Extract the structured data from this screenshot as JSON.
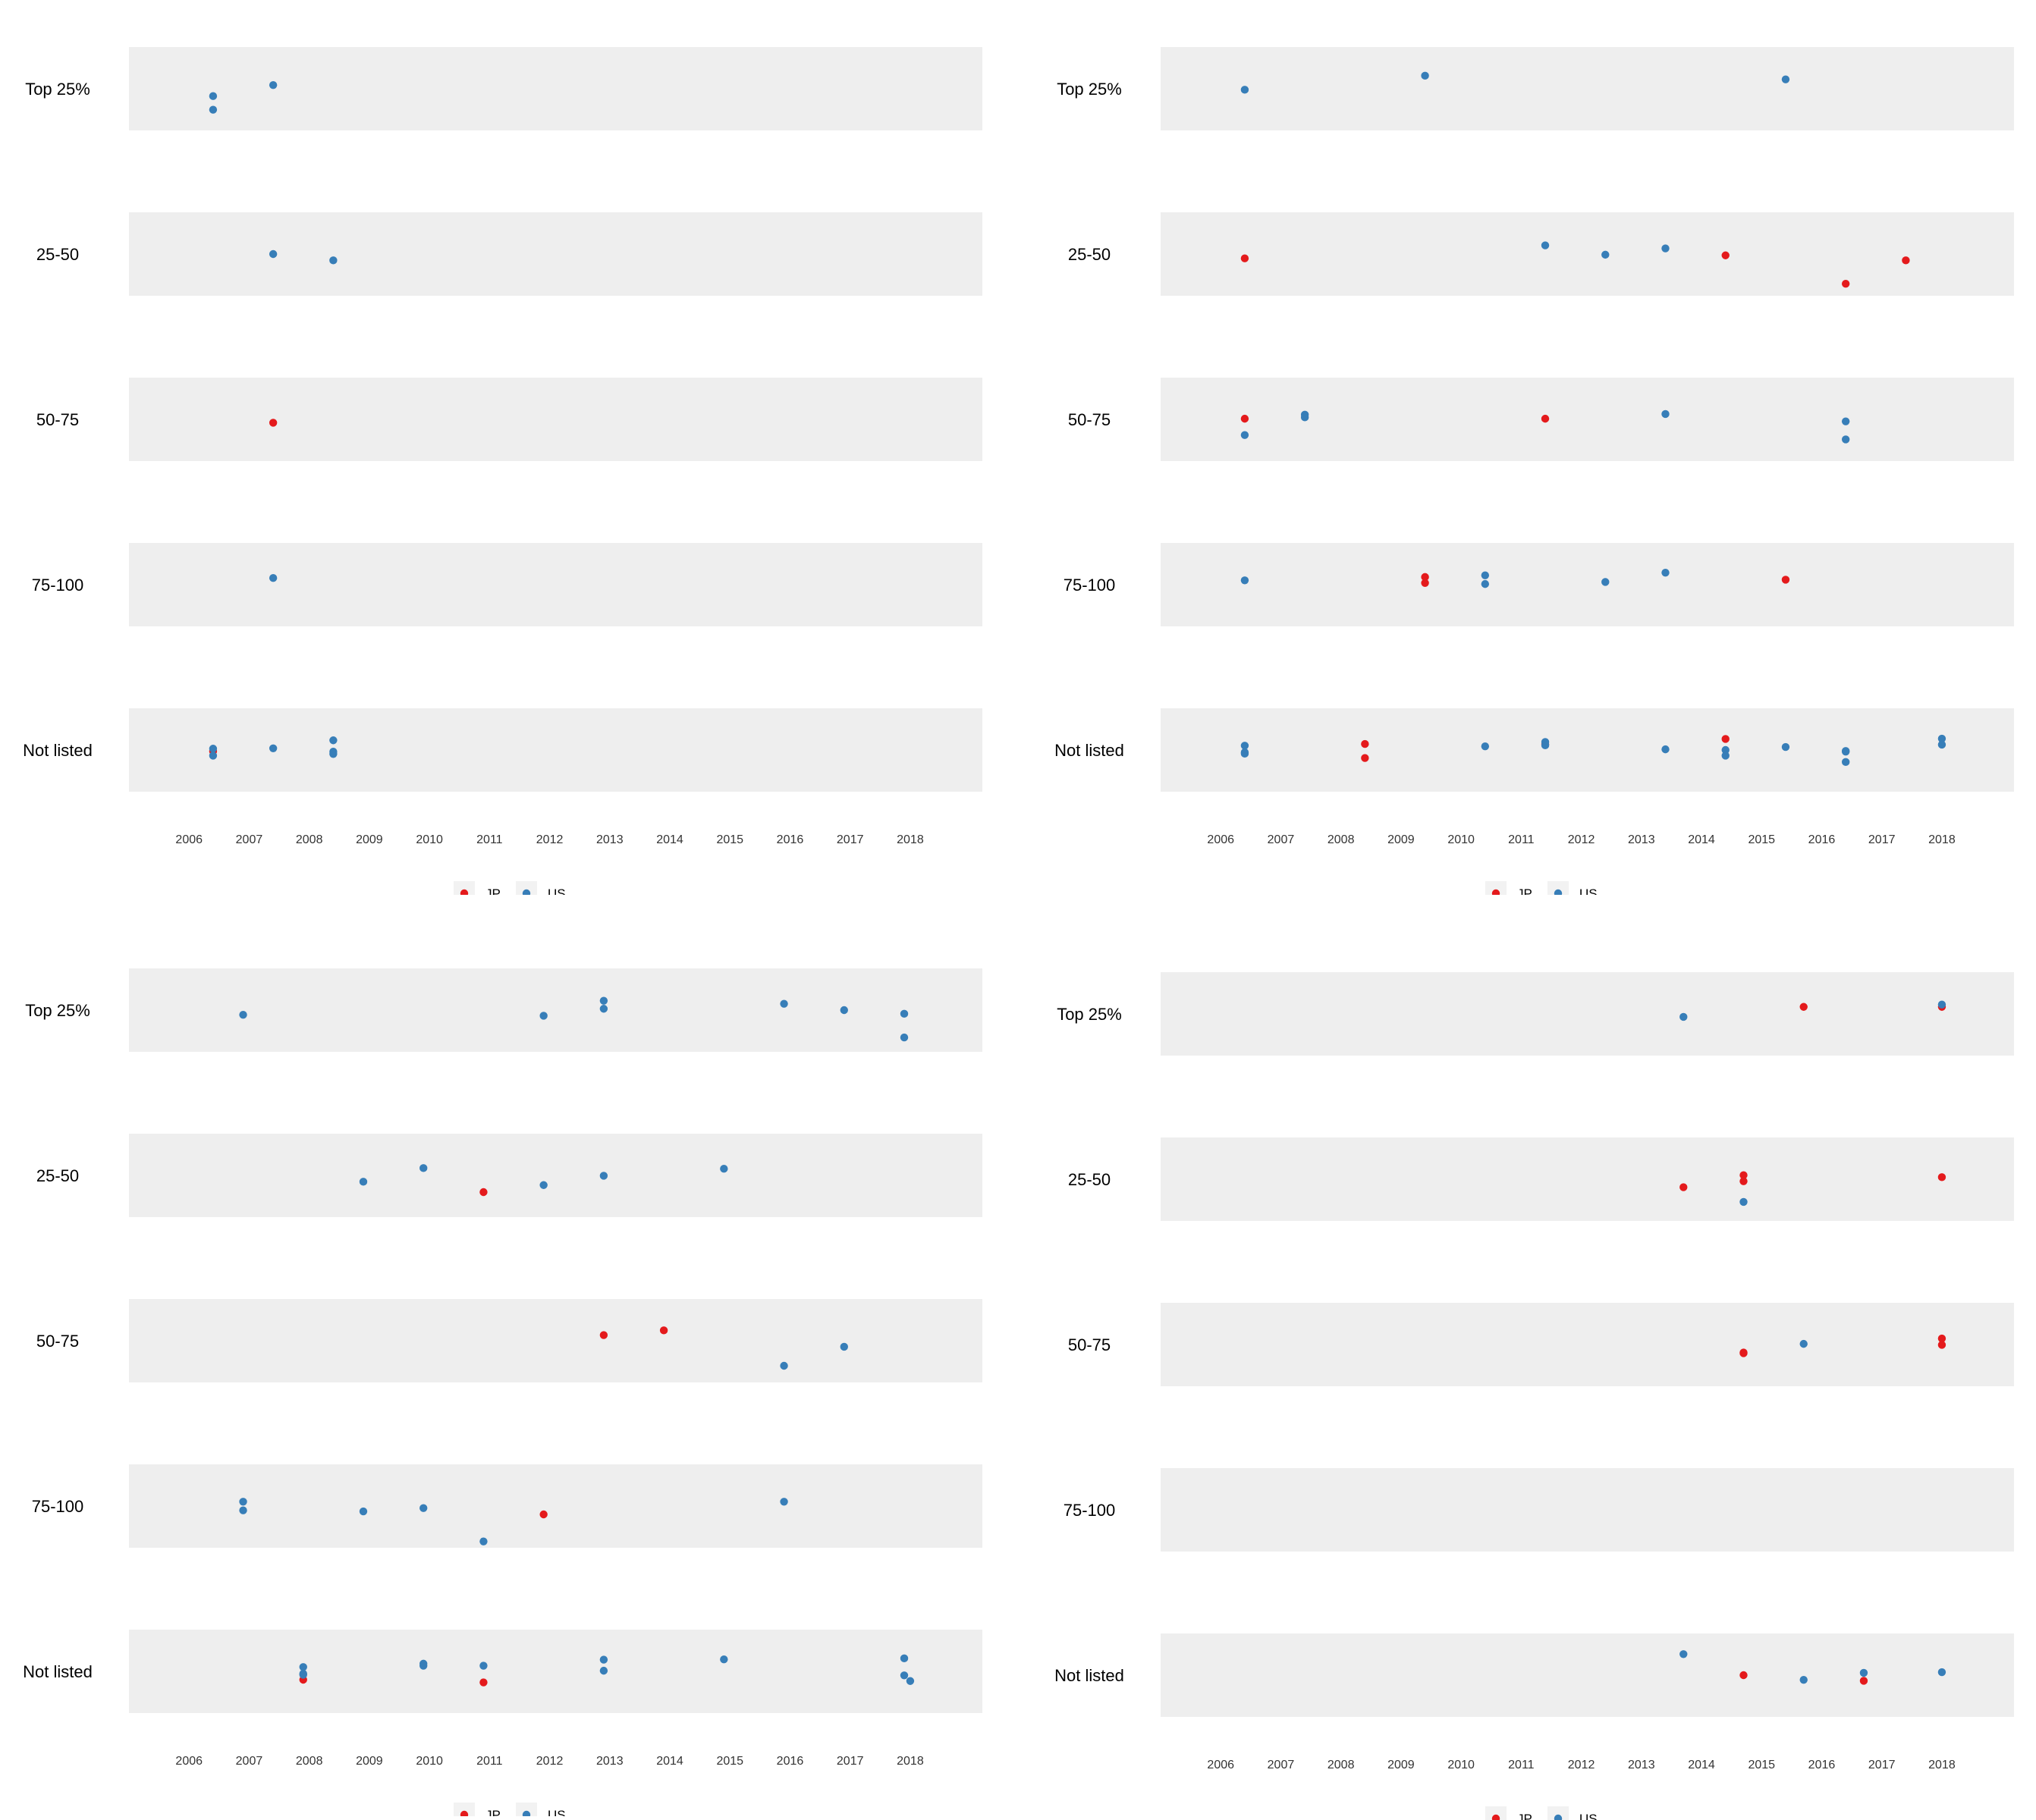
{
  "chart_data": [
    {
      "type": "scatter",
      "categories": [
        "Top 25%",
        "25-50",
        "50-75",
        "75-100",
        "Not listed"
      ],
      "x_ticks": [
        "2006",
        "2007",
        "2008",
        "2009",
        "2010",
        "2011",
        "2012",
        "2013",
        "2014",
        "2015",
        "2016",
        "2017",
        "2018"
      ],
      "xlim": [
        2005.0,
        2019.2
      ],
      "legend": [
        "JP",
        "US"
      ],
      "legend_position": "bottom",
      "series": [
        {
          "name": "JP",
          "color": "#E41A1C",
          "points": [
            {
              "x": 2007.4,
              "cat": "50-75",
              "jitter": -0.1
            },
            {
              "x": 2006.4,
              "cat": "Not listed",
              "jitter": -0.04
            }
          ]
        },
        {
          "name": "US",
          "color": "#377EB8",
          "points": [
            {
              "x": 2007.4,
              "cat": "Top 25%",
              "jitter": 0.11
            },
            {
              "x": 2006.4,
              "cat": "Top 25%",
              "jitter": -0.22
            },
            {
              "x": 2006.4,
              "cat": "Top 25%",
              "jitter": -0.63
            },
            {
              "x": 2007.4,
              "cat": "25-50",
              "jitter": 0.0
            },
            {
              "x": 2008.4,
              "cat": "25-50",
              "jitter": -0.19
            },
            {
              "x": 2007.4,
              "cat": "75-100",
              "jitter": 0.2
            },
            {
              "x": 2006.4,
              "cat": "Not listed",
              "jitter": 0.04
            },
            {
              "x": 2006.4,
              "cat": "Not listed",
              "jitter": -0.17
            },
            {
              "x": 2007.4,
              "cat": "Not listed",
              "jitter": 0.05
            },
            {
              "x": 2008.4,
              "cat": "Not listed",
              "jitter": 0.29
            },
            {
              "x": 2008.4,
              "cat": "Not listed",
              "jitter": -0.05
            },
            {
              "x": 2008.4,
              "cat": "Not listed",
              "jitter": -0.12
            }
          ]
        }
      ]
    },
    {
      "type": "scatter",
      "categories": [
        "Top 25%",
        "25-50",
        "50-75",
        "75-100",
        "Not listed"
      ],
      "x_ticks": [
        "2006",
        "2007",
        "2008",
        "2009",
        "2010",
        "2011",
        "2012",
        "2013",
        "2014",
        "2015",
        "2016",
        "2017",
        "2018"
      ],
      "xlim": [
        2005.0,
        2019.2
      ],
      "legend": [
        "JP",
        "US"
      ],
      "legend_position": "bottom",
      "series": [
        {
          "name": "JP",
          "color": "#E41A1C",
          "points": [
            {
              "x": 2006.4,
              "cat": "25-50",
              "jitter": -0.13
            },
            {
              "x": 2014.4,
              "cat": "25-50",
              "jitter": -0.04
            },
            {
              "x": 2017.4,
              "cat": "25-50",
              "jitter": -0.19
            },
            {
              "x": 2016.4,
              "cat": "25-50",
              "jitter": -0.89
            },
            {
              "x": 2006.4,
              "cat": "50-75",
              "jitter": 0.02
            },
            {
              "x": 2011.4,
              "cat": "50-75",
              "jitter": 0.02
            },
            {
              "x": 2009.4,
              "cat": "75-100",
              "jitter": 0.23
            },
            {
              "x": 2009.4,
              "cat": "75-100",
              "jitter": 0.05
            },
            {
              "x": 2015.4,
              "cat": "75-100",
              "jitter": 0.15
            },
            {
              "x": 2008.4,
              "cat": "Not listed",
              "jitter": 0.18
            },
            {
              "x": 2008.4,
              "cat": "Not listed",
              "jitter": -0.24
            },
            {
              "x": 2011.4,
              "cat": "Not listed",
              "jitter": 0.17
            },
            {
              "x": 2014.4,
              "cat": "Not listed",
              "jitter": 0.33
            }
          ]
        },
        {
          "name": "US",
          "color": "#377EB8",
          "points": [
            {
              "x": 2006.4,
              "cat": "Top 25%",
              "jitter": -0.03
            },
            {
              "x": 2009.4,
              "cat": "Top 25%",
              "jitter": 0.39
            },
            {
              "x": 2015.4,
              "cat": "Top 25%",
              "jitter": 0.28
            },
            {
              "x": 2011.4,
              "cat": "25-50",
              "jitter": 0.26
            },
            {
              "x": 2012.4,
              "cat": "25-50",
              "jitter": -0.02
            },
            {
              "x": 2013.4,
              "cat": "25-50",
              "jitter": 0.17
            },
            {
              "x": 2007.4,
              "cat": "50-75",
              "jitter": 0.14
            },
            {
              "x": 2007.4,
              "cat": "50-75",
              "jitter": 0.06
            },
            {
              "x": 2013.4,
              "cat": "50-75",
              "jitter": 0.16
            },
            {
              "x": 2016.4,
              "cat": "50-75",
              "jitter": -0.06
            },
            {
              "x": 2006.4,
              "cat": "50-75",
              "jitter": -0.47
            },
            {
              "x": 2016.4,
              "cat": "50-75",
              "jitter": -0.6
            },
            {
              "x": 2006.4,
              "cat": "75-100",
              "jitter": 0.13
            },
            {
              "x": 2010.4,
              "cat": "75-100",
              "jitter": 0.28
            },
            {
              "x": 2010.4,
              "cat": "75-100",
              "jitter": 0.02
            },
            {
              "x": 2012.4,
              "cat": "75-100",
              "jitter": 0.08
            },
            {
              "x": 2013.4,
              "cat": "75-100",
              "jitter": 0.36
            },
            {
              "x": 2006.4,
              "cat": "Not listed",
              "jitter": 0.13
            },
            {
              "x": 2006.4,
              "cat": "Not listed",
              "jitter": -0.07
            },
            {
              "x": 2006.4,
              "cat": "Not listed",
              "jitter": -0.11
            },
            {
              "x": 2010.4,
              "cat": "Not listed",
              "jitter": 0.11
            },
            {
              "x": 2011.4,
              "cat": "Not listed",
              "jitter": 0.24
            },
            {
              "x": 2011.4,
              "cat": "Not listed",
              "jitter": 0.14
            },
            {
              "x": 2013.4,
              "cat": "Not listed",
              "jitter": 0.02
            },
            {
              "x": 2014.4,
              "cat": "Not listed",
              "jitter": 0.0
            },
            {
              "x": 2014.4,
              "cat": "Not listed",
              "jitter": -0.17
            },
            {
              "x": 2015.4,
              "cat": "Not listed",
              "jitter": 0.09
            },
            {
              "x": 2016.4,
              "cat": "Not listed",
              "jitter": -0.03
            },
            {
              "x": 2016.4,
              "cat": "Not listed",
              "jitter": -0.05
            },
            {
              "x": 2016.4,
              "cat": "Not listed",
              "jitter": -0.36
            },
            {
              "x": 2018.0,
              "cat": "Not listed",
              "jitter": 0.34
            },
            {
              "x": 2018.0,
              "cat": "Not listed",
              "jitter": 0.16
            }
          ]
        }
      ]
    },
    {
      "type": "scatter",
      "categories": [
        "Top 25%",
        "25-50",
        "50-75",
        "75-100",
        "Not listed"
      ],
      "x_ticks": [
        "2006",
        "2007",
        "2008",
        "2009",
        "2010",
        "2011",
        "2012",
        "2013",
        "2014",
        "2015",
        "2016",
        "2017",
        "2018"
      ],
      "xlim": [
        2005.0,
        2019.2
      ],
      "legend": [
        "JP",
        "US"
      ],
      "legend_position": "bottom",
      "series": [
        {
          "name": "JP",
          "color": "#E41A1C",
          "points": [
            {
              "x": 2010.9,
              "cat": "25-50",
              "jitter": -0.5
            },
            {
              "x": 2012.9,
              "cat": "50-75",
              "jitter": 0.17
            },
            {
              "x": 2013.9,
              "cat": "50-75",
              "jitter": 0.31
            },
            {
              "x": 2011.9,
              "cat": "75-100",
              "jitter": -0.25
            },
            {
              "x": 2007.9,
              "cat": "Not listed",
              "jitter": -0.25
            },
            {
              "x": 2010.9,
              "cat": "Not listed",
              "jitter": -0.33
            }
          ]
        },
        {
          "name": "US",
          "color": "#377EB8",
          "points": [
            {
              "x": 2006.9,
              "cat": "Top 25%",
              "jitter": -0.14
            },
            {
              "x": 2011.9,
              "cat": "Top 25%",
              "jitter": -0.17
            },
            {
              "x": 2012.9,
              "cat": "Top 25%",
              "jitter": 0.28
            },
            {
              "x": 2012.9,
              "cat": "Top 25%",
              "jitter": 0.04
            },
            {
              "x": 2015.9,
              "cat": "Top 25%",
              "jitter": 0.19
            },
            {
              "x": 2016.9,
              "cat": "Top 25%",
              "jitter": 0.0
            },
            {
              "x": 2017.9,
              "cat": "Top 25%",
              "jitter": -0.11
            },
            {
              "x": 2017.9,
              "cat": "Top 25%",
              "jitter": -0.82
            },
            {
              "x": 2009.9,
              "cat": "25-50",
              "jitter": 0.22
            },
            {
              "x": 2008.9,
              "cat": "25-50",
              "jitter": -0.19
            },
            {
              "x": 2011.9,
              "cat": "25-50",
              "jitter": -0.29
            },
            {
              "x": 2012.9,
              "cat": "25-50",
              "jitter": -0.01
            },
            {
              "x": 2014.9,
              "cat": "25-50",
              "jitter": 0.2
            },
            {
              "x": 2016.9,
              "cat": "50-75",
              "jitter": -0.18
            },
            {
              "x": 2015.9,
              "cat": "50-75",
              "jitter": -0.75
            },
            {
              "x": 2006.9,
              "cat": "75-100",
              "jitter": 0.13
            },
            {
              "x": 2006.9,
              "cat": "75-100",
              "jitter": -0.13
            },
            {
              "x": 2008.9,
              "cat": "75-100",
              "jitter": -0.16
            },
            {
              "x": 2009.9,
              "cat": "75-100",
              "jitter": -0.06
            },
            {
              "x": 2015.9,
              "cat": "75-100",
              "jitter": 0.13
            },
            {
              "x": 2010.9,
              "cat": "75-100",
              "jitter": -1.06
            },
            {
              "x": 2007.9,
              "cat": "Not listed",
              "jitter": 0.13
            },
            {
              "x": 2007.9,
              "cat": "Not listed",
              "jitter": -0.07
            },
            {
              "x": 2007.9,
              "cat": "Not listed",
              "jitter": -0.1
            },
            {
              "x": 2009.9,
              "cat": "Not listed",
              "jitter": 0.23
            },
            {
              "x": 2009.9,
              "cat": "Not listed",
              "jitter": 0.17
            },
            {
              "x": 2010.9,
              "cat": "Not listed",
              "jitter": 0.17
            },
            {
              "x": 2012.9,
              "cat": "Not listed",
              "jitter": 0.35
            },
            {
              "x": 2012.9,
              "cat": "Not listed",
              "jitter": 0.02
            },
            {
              "x": 2014.9,
              "cat": "Not listed",
              "jitter": 0.36
            },
            {
              "x": 2017.9,
              "cat": "Not listed",
              "jitter": 0.39
            },
            {
              "x": 2017.9,
              "cat": "Not listed",
              "jitter": -0.12
            },
            {
              "x": 2018.0,
              "cat": "Not listed",
              "jitter": -0.29
            }
          ]
        }
      ]
    },
    {
      "type": "scatter",
      "categories": [
        "Top 25%",
        "25-50",
        "50-75",
        "75-100",
        "Not listed"
      ],
      "x_ticks": [
        "2006",
        "2007",
        "2008",
        "2009",
        "2010",
        "2011",
        "2012",
        "2013",
        "2014",
        "2015",
        "2016",
        "2017",
        "2018"
      ],
      "xlim": [
        2005.0,
        2019.2
      ],
      "legend": [
        "JP",
        "US"
      ],
      "legend_position": "bottom",
      "series": [
        {
          "name": "JP",
          "color": "#E41A1C",
          "points": [
            {
              "x": 2015.7,
              "cat": "Top 25%",
              "jitter": 0.21
            },
            {
              "x": 2018.0,
              "cat": "Top 25%",
              "jitter": 0.21
            },
            {
              "x": 2013.7,
              "cat": "25-50",
              "jitter": -0.24
            },
            {
              "x": 2014.7,
              "cat": "25-50",
              "jitter": 0.12
            },
            {
              "x": 2014.7,
              "cat": "25-50",
              "jitter": -0.06
            },
            {
              "x": 2018.0,
              "cat": "25-50",
              "jitter": 0.06
            },
            {
              "x": 2014.7,
              "cat": "50-75",
              "jitter": -0.24
            },
            {
              "x": 2014.7,
              "cat": "50-75",
              "jitter": -0.26
            },
            {
              "x": 2018.0,
              "cat": "50-75",
              "jitter": 0.18
            },
            {
              "x": 2018.0,
              "cat": "50-75",
              "jitter": -0.01
            },
            {
              "x": 2014.7,
              "cat": "Not listed",
              "jitter": 0.0
            },
            {
              "x": 2016.7,
              "cat": "Not listed",
              "jitter": -0.17
            }
          ]
        },
        {
          "name": "US",
          "color": "#377EB8",
          "points": [
            {
              "x": 2018.0,
              "cat": "Top 25%",
              "jitter": 0.28
            },
            {
              "x": 2013.7,
              "cat": "Top 25%",
              "jitter": -0.09
            },
            {
              "x": 2014.7,
              "cat": "25-50",
              "jitter": -0.68
            },
            {
              "x": 2015.7,
              "cat": "50-75",
              "jitter": 0.02
            },
            {
              "x": 2013.7,
              "cat": "Not listed",
              "jitter": 0.63
            },
            {
              "x": 2015.7,
              "cat": "Not listed",
              "jitter": -0.14
            },
            {
              "x": 2016.7,
              "cat": "Not listed",
              "jitter": 0.07
            },
            {
              "x": 2018.0,
              "cat": "Not listed",
              "jitter": 0.09
            }
          ]
        }
      ]
    }
  ]
}
